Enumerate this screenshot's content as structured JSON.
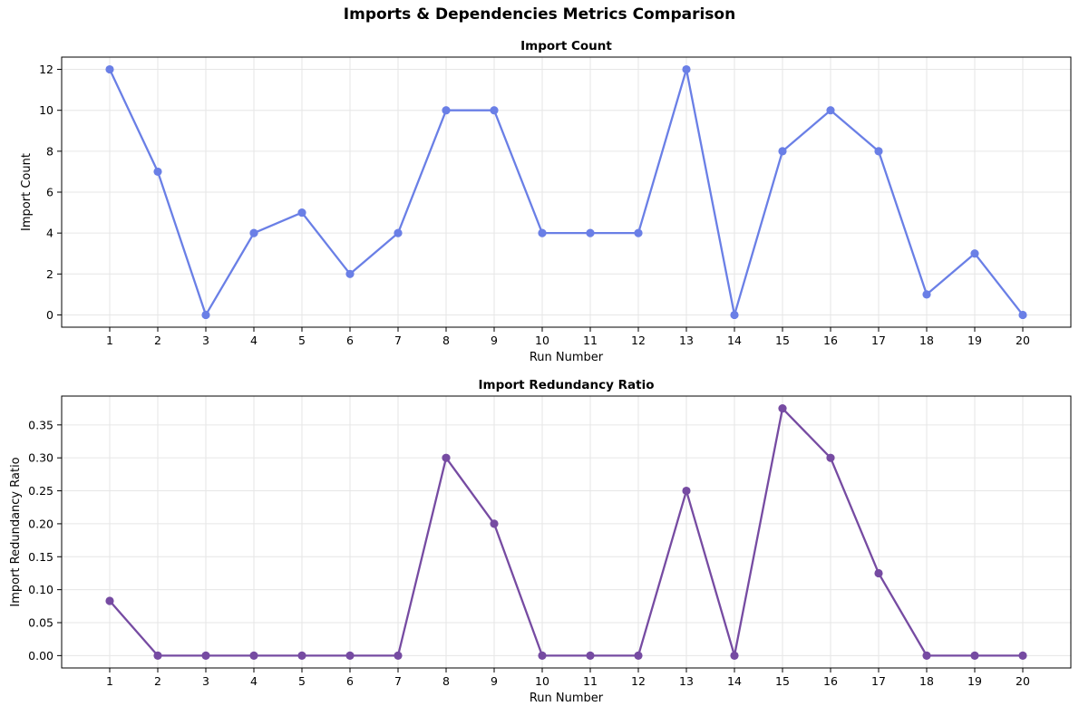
{
  "figure": {
    "title": "Imports & Dependencies Metrics Comparison"
  },
  "chart_data": [
    {
      "type": "line",
      "title": "Import Count",
      "xlabel": "Run Number",
      "ylabel": "Import Count",
      "x": [
        1,
        2,
        3,
        4,
        5,
        6,
        7,
        8,
        9,
        10,
        11,
        12,
        13,
        14,
        15,
        16,
        17,
        18,
        19,
        20
      ],
      "xlim": [
        0,
        21
      ],
      "ylim": [
        -0.6,
        12.6
      ],
      "yticks": [
        0,
        2,
        4,
        6,
        8,
        10,
        12
      ],
      "ytick_labels": [
        "0",
        "2",
        "4",
        "6",
        "8",
        "10",
        "12"
      ],
      "grid": true,
      "series": [
        {
          "values": [
            12,
            7,
            0,
            4,
            5,
            2,
            4,
            10,
            10,
            4,
            4,
            4,
            12,
            0,
            8,
            10,
            8,
            1,
            3,
            0
          ],
          "color": "#6a7fe6"
        }
      ]
    },
    {
      "type": "line",
      "title": "Import Redundancy Ratio",
      "xlabel": "Run Number",
      "ylabel": "Import Redundancy Ratio",
      "x": [
        1,
        2,
        3,
        4,
        5,
        6,
        7,
        8,
        9,
        10,
        11,
        12,
        13,
        14,
        15,
        16,
        17,
        18,
        19,
        20
      ],
      "xlim": [
        0,
        21
      ],
      "ylim": [
        -0.01875,
        0.39375
      ],
      "yticks": [
        0,
        0.05,
        0.1,
        0.15,
        0.2,
        0.25,
        0.3,
        0.35
      ],
      "ytick_labels": [
        "0.00",
        "0.05",
        "0.10",
        "0.15",
        "0.20",
        "0.25",
        "0.30",
        "0.35"
      ],
      "grid": true,
      "series": [
        {
          "values": [
            0.083,
            0,
            0,
            0,
            0,
            0,
            0,
            0.3,
            0.2,
            0,
            0,
            0,
            0.25,
            0,
            0.375,
            0.3,
            0.125,
            0,
            0,
            0
          ],
          "color": "#764ba2"
        }
      ]
    }
  ]
}
